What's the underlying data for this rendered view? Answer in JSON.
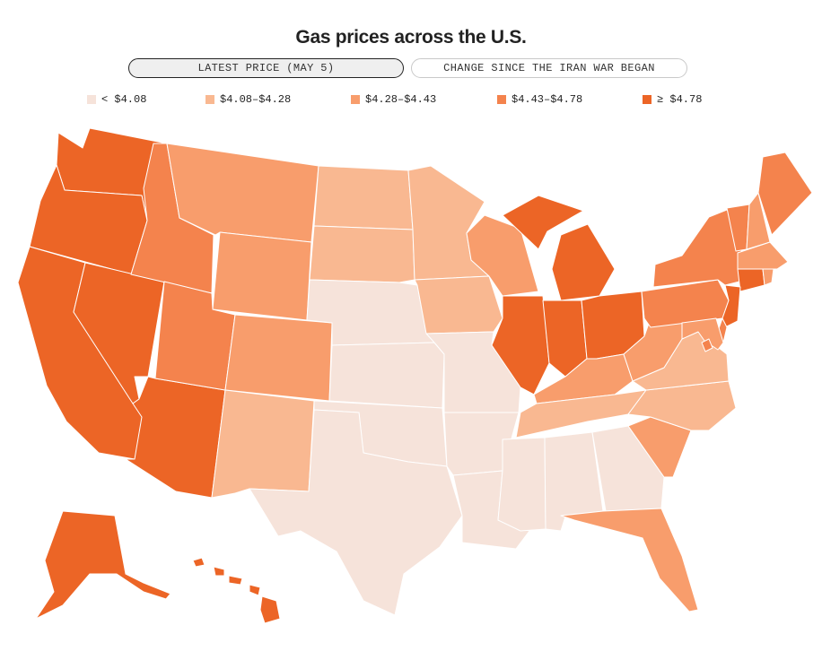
{
  "title": "Gas prices across the U.S.",
  "toggles": {
    "latest": "LATEST PRICE (MAY 5)",
    "change": "CHANGE SINCE THE IRAN WAR BEGAN"
  },
  "legend": [
    {
      "label": "< $4.08",
      "color": "#f6e3da"
    },
    {
      "label": "$4.08–$4.28",
      "color": "#f9b891"
    },
    {
      "label": "$4.28–$4.43",
      "color": "#f89d6c"
    },
    {
      "label": "$4.43–$4.78",
      "color": "#f4834d"
    },
    {
      "label": "≥ $4.78",
      "color": "#ec6526"
    }
  ],
  "states": {
    "WA": 4,
    "OR": 4,
    "CA": 4,
    "NV": 4,
    "AZ": 4,
    "ID": 3,
    "UT": 3,
    "MT": 2,
    "WY": 2,
    "CO": 2,
    "NM": 1,
    "ND": 1,
    "SD": 1,
    "NE": 0,
    "KS": 0,
    "OK": 0,
    "TX": 0,
    "MN": 1,
    "IA": 1,
    "MO": 0,
    "AR": 0,
    "LA": 0,
    "WI": 2,
    "IL": 4,
    "MI": 4,
    "IN": 4,
    "OH": 4,
    "KY": 2,
    "TN": 1,
    "MS": 0,
    "AL": 0,
    "GA": 0,
    "FL": 2,
    "SC": 2,
    "NC": 1,
    "VA": 1,
    "WV": 2,
    "PA": 3,
    "NY": 3,
    "VT": 3,
    "NH": 2,
    "ME": 3,
    "MA": 2,
    "RI": 2,
    "CT": 4,
    "NJ": 4,
    "DE": 3,
    "MD": 2,
    "DC": 3,
    "AK": 4,
    "HI": 4
  }
}
